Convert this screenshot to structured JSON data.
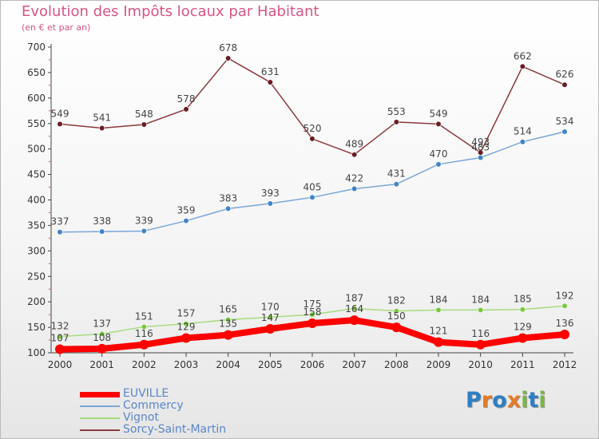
{
  "title": "Evolution des Impôts locaux par Habitant",
  "subtitle": "(en € et par an)",
  "colors": {
    "title": "#d75585",
    "axis": "#444444",
    "grid": "#e0e0e0",
    "legend_text": "#5a86c8"
  },
  "logo": {
    "text": "Proxiti",
    "letters": [
      "P",
      "r",
      "o",
      "x",
      "i",
      "t",
      "i"
    ],
    "letter_colors": [
      "#2d7fc4",
      "#e57b25",
      "#2d7fc4",
      "#e57b25",
      "#7ab648",
      "#2d7fc4",
      "#7ab648"
    ]
  },
  "chart_data": {
    "type": "line",
    "title": "Evolution des Impôts locaux par Habitant",
    "subtitle": "(en € et par an)",
    "xlabel": "",
    "ylabel": "",
    "x": [
      "2000",
      "2001",
      "2002",
      "2003",
      "2004",
      "2005",
      "2006",
      "2007",
      "2008",
      "2009",
      "2010",
      "2011",
      "2012"
    ],
    "ylim": [
      100,
      700
    ],
    "yticks": [
      "100",
      "150",
      "200",
      "250",
      "300",
      "350",
      "400",
      "450",
      "500",
      "550",
      "600",
      "650",
      "700"
    ],
    "grid": false,
    "legend_position": "bottom-left",
    "series": [
      {
        "name": "EUVILLE",
        "color": "#ff0000",
        "marker_color": "#ff0000",
        "thick": true,
        "values": [
          107,
          108,
          116,
          129,
          135,
          147,
          158,
          164,
          150,
          121,
          116,
          129,
          136
        ],
        "labels": [
          "107",
          "108",
          "116",
          "129",
          "135",
          "147",
          "158",
          "164",
          "150",
          "121",
          "116",
          "129",
          "136"
        ]
      },
      {
        "name": "Commercy",
        "color": "#7aa6d6",
        "marker_color": "#3f84c8",
        "thick": false,
        "values": [
          337,
          338,
          339,
          359,
          383,
          393,
          405,
          422,
          431,
          470,
          483,
          514,
          534
        ],
        "labels": [
          "337",
          "338",
          "339",
          "359",
          "383",
          "393",
          "405",
          "422",
          "431",
          "470",
          "483",
          "514",
          "534"
        ]
      },
      {
        "name": "Vignot",
        "color": "#a6dc7e",
        "marker_color": "#78c83c",
        "thick": false,
        "values": [
          132,
          137,
          151,
          157,
          165,
          170,
          175,
          187,
          182,
          184,
          184,
          185,
          192
        ],
        "labels": [
          "132",
          "137",
          "151",
          "157",
          "165",
          "170",
          "175",
          "187",
          "182",
          "184",
          "184",
          "185",
          "192"
        ]
      },
      {
        "name": "Sorcy-Saint-Martin",
        "color": "#8c3a3e",
        "marker_color": "#6b1c22",
        "thick": false,
        "values": [
          549,
          541,
          548,
          578,
          678,
          631,
          520,
          489,
          553,
          549,
          493,
          662,
          626
        ],
        "labels": [
          "549",
          "541",
          "548",
          "578",
          "678",
          "631",
          "520",
          "489",
          "553",
          "549",
          "493",
          "662",
          "626"
        ]
      }
    ]
  }
}
